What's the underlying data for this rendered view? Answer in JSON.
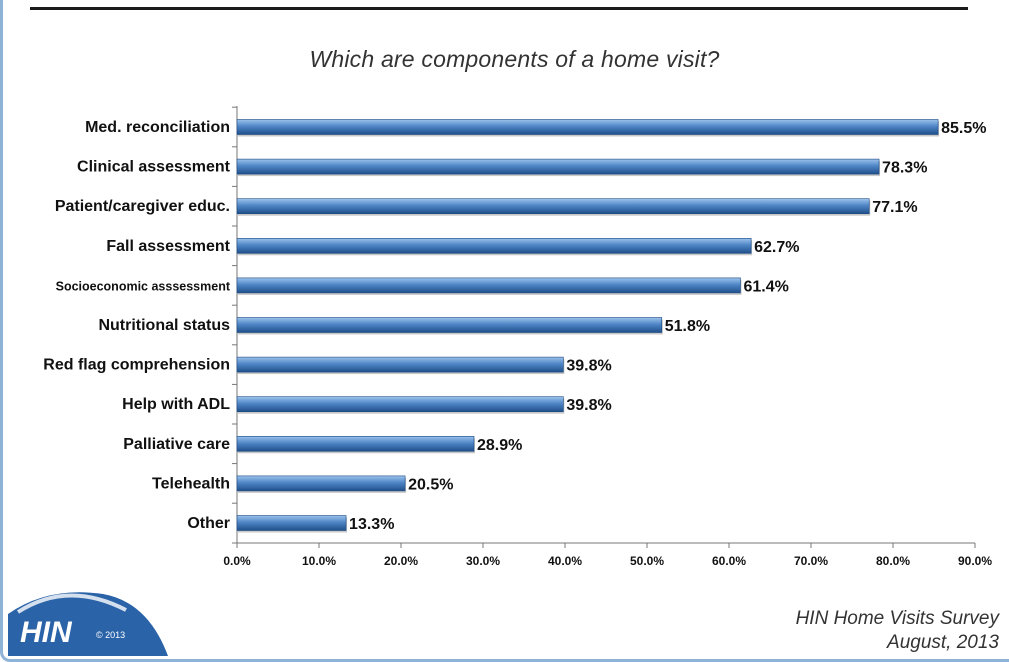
{
  "colors": {
    "bar_top": "#9cc3ec",
    "bar_mid": "#4f86c6",
    "bar_bottom": "#1f4f8a",
    "frame": "#8fb3d6",
    "logo": "#2a63a8"
  },
  "chart_data": {
    "type": "bar",
    "orientation": "horizontal",
    "title": "Which are components of a home visit?",
    "categories": [
      "Med. reconciliation",
      "Clinical assessment",
      "Patient/caregiver educ.",
      "Fall assessment",
      "Socioeconomic asssessment",
      "Nutritional status",
      "Red flag comprehension",
      "Help with ADL",
      "Palliative care",
      "Telehealth",
      "Other"
    ],
    "values": [
      85.5,
      78.3,
      77.1,
      62.7,
      61.4,
      51.8,
      39.8,
      39.8,
      28.9,
      20.5,
      13.3
    ],
    "value_labels": [
      "85.5%",
      "78.3%",
      "77.1%",
      "62.7%",
      "61.4%",
      "51.8%",
      "39.8%",
      "39.8%",
      "28.9%",
      "20.5%",
      "13.3%"
    ],
    "xlim": [
      0,
      90
    ],
    "xticks": [
      0,
      10,
      20,
      30,
      40,
      50,
      60,
      70,
      80,
      90
    ],
    "xtick_labels": [
      "0.0%",
      "10.0%",
      "20.0%",
      "30.0%",
      "40.0%",
      "50.0%",
      "60.0%",
      "70.0%",
      "80.0%",
      "90.0%"
    ],
    "grid": false,
    "legend": "none"
  },
  "logo": {
    "text": "HIN",
    "copyright": "© 2013"
  },
  "source": {
    "line1": "HIN Home Visits Survey",
    "line2": "August, 2013"
  }
}
